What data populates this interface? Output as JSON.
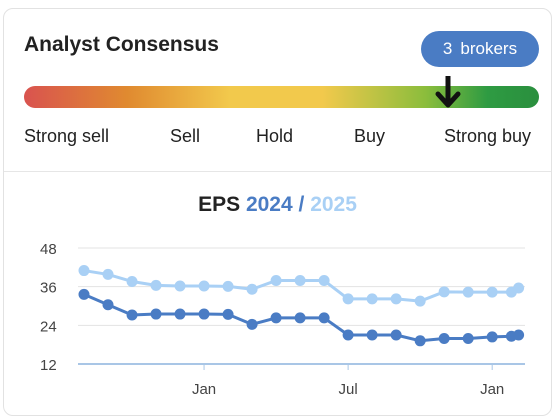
{
  "header": {
    "title": "Analyst Consensus"
  },
  "brokers_badge": {
    "count": "3",
    "label": "brokers"
  },
  "gauge": {
    "labels": [
      "Strong sell",
      "Sell",
      "Hold",
      "Buy",
      "Strong buy"
    ],
    "marker_value": "Strong buy",
    "colors": [
      "#d9534f",
      "#e08a30",
      "#f2c94c",
      "#8bbd3c",
      "#2a8f3e"
    ]
  },
  "eps": {
    "label": "EPS",
    "year_a": "2024",
    "separator": "/",
    "year_b": "2025"
  },
  "chart_data": {
    "type": "line",
    "y_ticks": [
      12,
      24,
      36,
      48
    ],
    "ylim": [
      12,
      48
    ],
    "x_ticks": [
      {
        "label": "Jan",
        "x": 5
      },
      {
        "label": "Jul",
        "x": 11
      },
      {
        "label": "Jan",
        "x": 17
      }
    ],
    "xlim": [
      0,
      18.2
    ],
    "grid": true,
    "series": [
      {
        "name": "2025",
        "color": "#a9d0f5",
        "points": [
          [
            0,
            41
          ],
          [
            1,
            39.8
          ],
          [
            2,
            37.6
          ],
          [
            3,
            36.4
          ],
          [
            4,
            36.2
          ],
          [
            5,
            36.2
          ],
          [
            6,
            36.1
          ],
          [
            7,
            35.2
          ],
          [
            8,
            37.9
          ],
          [
            9,
            37.9
          ],
          [
            10,
            37.9
          ],
          [
            11,
            32.2
          ],
          [
            12,
            32.2
          ],
          [
            13,
            32.2
          ],
          [
            14,
            31.5
          ],
          [
            15,
            34.4
          ],
          [
            16,
            34.3
          ],
          [
            17,
            34.3
          ],
          [
            17.8,
            34.3
          ],
          [
            18.1,
            35.6
          ]
        ]
      },
      {
        "name": "2024",
        "color": "#4a7cc4",
        "points": [
          [
            0,
            33.6
          ],
          [
            1,
            30.4
          ],
          [
            2,
            27.2
          ],
          [
            3,
            27.5
          ],
          [
            4,
            27.5
          ],
          [
            5,
            27.5
          ],
          [
            6,
            27.4
          ],
          [
            7,
            24.3
          ],
          [
            8,
            26.3
          ],
          [
            9,
            26.3
          ],
          [
            10,
            26.3
          ],
          [
            11,
            21
          ],
          [
            12,
            21
          ],
          [
            13,
            21
          ],
          [
            14,
            19.2
          ],
          [
            15,
            19.9
          ],
          [
            16,
            19.9
          ],
          [
            17,
            20.4
          ],
          [
            17.8,
            20.6
          ],
          [
            18.1,
            21
          ]
        ]
      }
    ]
  }
}
